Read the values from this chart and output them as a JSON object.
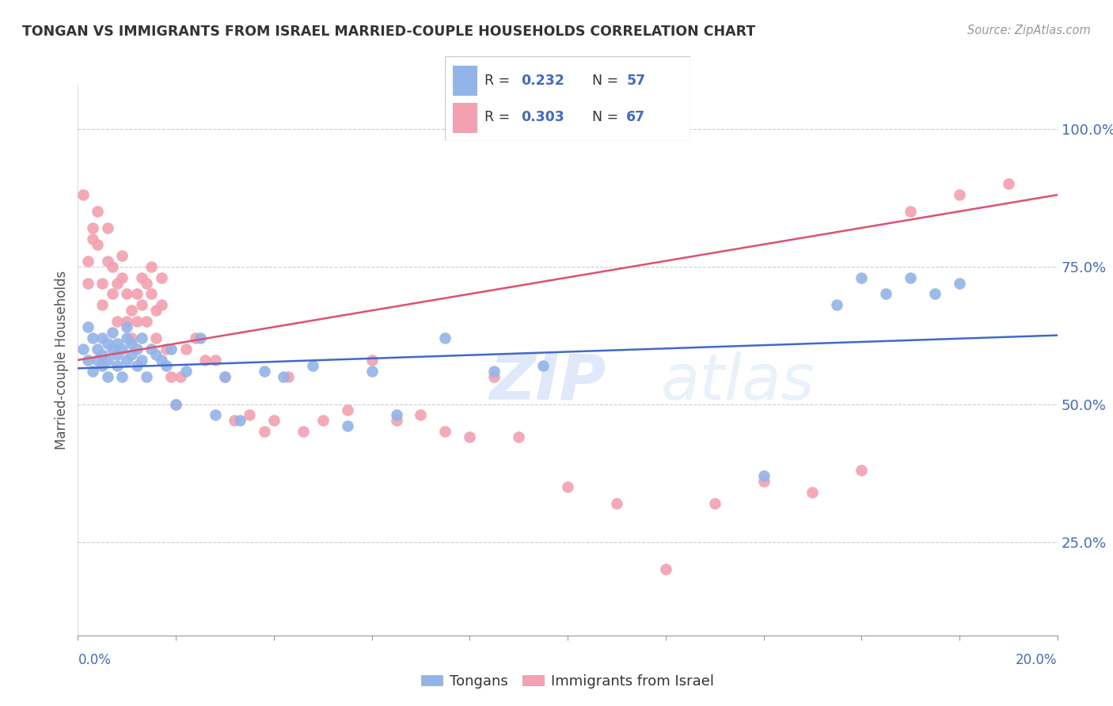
{
  "title": "TONGAN VS IMMIGRANTS FROM ISRAEL MARRIED-COUPLE HOUSEHOLDS CORRELATION CHART",
  "source": "Source: ZipAtlas.com",
  "ylabel": "Married-couple Households",
  "ytick_labels": [
    "25.0%",
    "50.0%",
    "75.0%",
    "100.0%"
  ],
  "ytick_values": [
    0.25,
    0.5,
    0.75,
    1.0
  ],
  "xlim": [
    0.0,
    0.2
  ],
  "ylim": [
    0.08,
    1.08
  ],
  "legend_blue_r": "0.232",
  "legend_blue_n": "57",
  "legend_pink_r": "0.303",
  "legend_pink_n": "67",
  "tongan_label": "Tongans",
  "israel_label": "Immigrants from Israel",
  "scatter_blue_color": "#92b4e8",
  "scatter_pink_color": "#f4a0b0",
  "line_blue_color": "#4169cc",
  "line_pink_color": "#e05070",
  "watermark_zip": "ZIP",
  "watermark_atlas": "atlas",
  "blue_points_x": [
    0.001,
    0.002,
    0.002,
    0.003,
    0.003,
    0.004,
    0.004,
    0.005,
    0.005,
    0.005,
    0.006,
    0.006,
    0.006,
    0.007,
    0.007,
    0.008,
    0.008,
    0.008,
    0.009,
    0.009,
    0.01,
    0.01,
    0.01,
    0.011,
    0.011,
    0.012,
    0.012,
    0.013,
    0.013,
    0.014,
    0.015,
    0.016,
    0.017,
    0.018,
    0.019,
    0.02,
    0.022,
    0.025,
    0.028,
    0.03,
    0.033,
    0.038,
    0.042,
    0.048,
    0.055,
    0.06,
    0.065,
    0.075,
    0.085,
    0.095,
    0.14,
    0.155,
    0.16,
    0.165,
    0.17,
    0.175,
    0.18
  ],
  "blue_points_y": [
    0.6,
    0.58,
    0.64,
    0.62,
    0.56,
    0.6,
    0.58,
    0.59,
    0.62,
    0.57,
    0.61,
    0.58,
    0.55,
    0.6,
    0.63,
    0.57,
    0.61,
    0.59,
    0.55,
    0.6,
    0.58,
    0.62,
    0.64,
    0.59,
    0.61,
    0.57,
    0.6,
    0.62,
    0.58,
    0.55,
    0.6,
    0.59,
    0.58,
    0.57,
    0.6,
    0.5,
    0.56,
    0.62,
    0.48,
    0.55,
    0.47,
    0.56,
    0.55,
    0.57,
    0.46,
    0.56,
    0.48,
    0.62,
    0.56,
    0.57,
    0.37,
    0.68,
    0.73,
    0.7,
    0.73,
    0.7,
    0.72
  ],
  "pink_points_x": [
    0.001,
    0.002,
    0.002,
    0.003,
    0.003,
    0.004,
    0.004,
    0.005,
    0.005,
    0.006,
    0.006,
    0.007,
    0.007,
    0.008,
    0.008,
    0.009,
    0.009,
    0.01,
    0.01,
    0.011,
    0.011,
    0.012,
    0.012,
    0.013,
    0.013,
    0.014,
    0.014,
    0.015,
    0.015,
    0.016,
    0.016,
    0.017,
    0.017,
    0.018,
    0.019,
    0.02,
    0.021,
    0.022,
    0.024,
    0.026,
    0.028,
    0.03,
    0.032,
    0.035,
    0.038,
    0.04,
    0.043,
    0.046,
    0.05,
    0.055,
    0.06,
    0.065,
    0.07,
    0.075,
    0.08,
    0.085,
    0.09,
    0.1,
    0.11,
    0.12,
    0.13,
    0.14,
    0.15,
    0.16,
    0.17,
    0.18,
    0.19
  ],
  "pink_points_y": [
    0.88,
    0.72,
    0.76,
    0.8,
    0.82,
    0.85,
    0.79,
    0.72,
    0.68,
    0.76,
    0.82,
    0.7,
    0.75,
    0.65,
    0.72,
    0.77,
    0.73,
    0.65,
    0.7,
    0.62,
    0.67,
    0.7,
    0.65,
    0.73,
    0.68,
    0.65,
    0.72,
    0.75,
    0.7,
    0.67,
    0.62,
    0.68,
    0.73,
    0.6,
    0.55,
    0.5,
    0.55,
    0.6,
    0.62,
    0.58,
    0.58,
    0.55,
    0.47,
    0.48,
    0.45,
    0.47,
    0.55,
    0.45,
    0.47,
    0.49,
    0.58,
    0.47,
    0.48,
    0.45,
    0.44,
    0.55,
    0.44,
    0.35,
    0.32,
    0.2,
    0.32,
    0.36,
    0.34,
    0.38,
    0.85,
    0.88,
    0.9
  ],
  "blue_line_x": [
    0.0,
    0.2
  ],
  "blue_line_y": [
    0.565,
    0.625
  ],
  "pink_line_x": [
    0.0,
    0.2
  ],
  "pink_line_y": [
    0.58,
    0.88
  ],
  "background_color": "#ffffff",
  "grid_color": "#cccccc",
  "title_color": "#333333",
  "tick_label_color": "#4169cc"
}
